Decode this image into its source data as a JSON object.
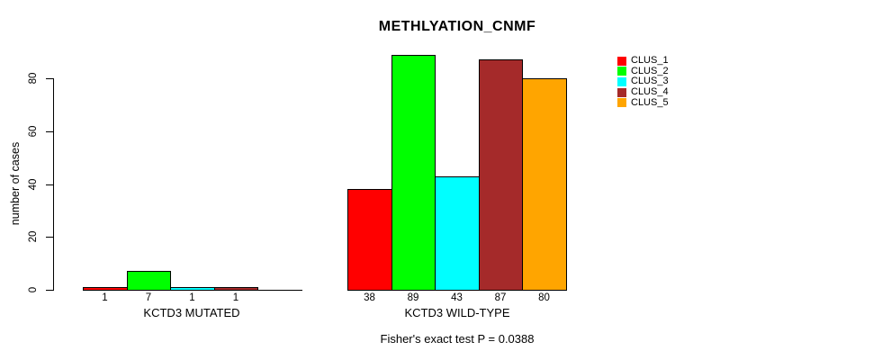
{
  "chart_data": {
    "type": "bar",
    "title": "METHLYATION_CNMF",
    "xlabel": "",
    "ylabel": "number of cases",
    "ylim": [
      0,
      89
    ],
    "yticks": [
      0,
      20,
      40,
      60,
      80
    ],
    "grid": false,
    "legend_position": "right",
    "categories": [
      "KCTD3 MUTATED",
      "KCTD3 WILD-TYPE"
    ],
    "series": [
      {
        "name": "CLUS_1",
        "color": "#FF0000",
        "values": [
          1,
          38
        ]
      },
      {
        "name": "CLUS_2",
        "color": "#00FF00",
        "values": [
          7,
          89
        ]
      },
      {
        "name": "CLUS_3",
        "color": "#00FFFF",
        "values": [
          1,
          43
        ]
      },
      {
        "name": "CLUS_4",
        "color": "#A52A2A",
        "values": [
          1,
          87
        ]
      },
      {
        "name": "CLUS_5",
        "color": "#FFA500",
        "values": [
          0,
          80
        ]
      }
    ],
    "bar_value_labels": [
      [
        "1",
        "7",
        "1",
        "1",
        ""
      ],
      [
        "38",
        "89",
        "43",
        "87",
        "80"
      ]
    ],
    "annotation": "Fisher's exact test P = 0.0388"
  },
  "colors": {
    "background": "#FFFFFF",
    "axis": "#000000",
    "text": "#000000"
  }
}
